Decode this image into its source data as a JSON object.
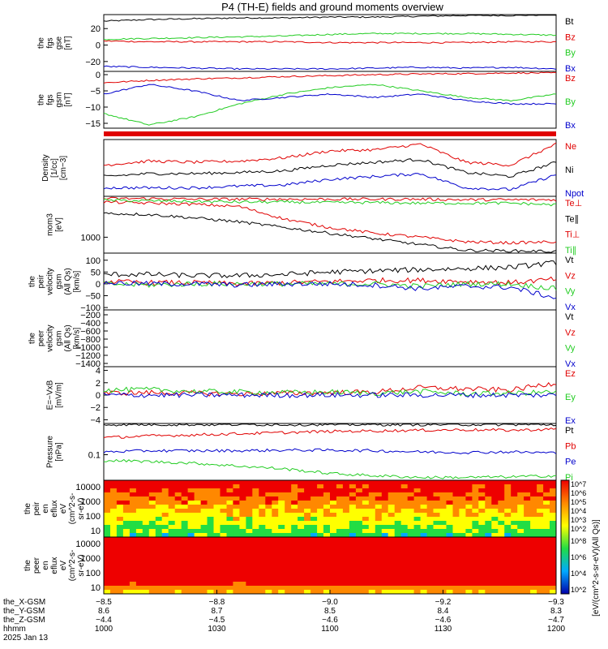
{
  "title": "P4 (TH-E) fields and ground moments overview",
  "colors": {
    "black": "#000000",
    "red": "#e00000",
    "green": "#22cc22",
    "blue": "#0000cc"
  },
  "chart_data": [
    {
      "type": "line",
      "panel": "fgs_gse",
      "ylabel": [
        "the",
        "fgs",
        "gse",
        "[nT]"
      ],
      "yticks": [
        "20",
        "0",
        "−20"
      ],
      "yvalues": [
        20,
        0,
        -20
      ],
      "ylim": [
        -32,
        37
      ],
      "legend": [
        "Bt",
        "Bz",
        "By",
        "Bx"
      ],
      "series": [
        {
          "name": "Bt",
          "values": [
            29,
            31,
            32,
            33,
            33,
            34,
            34,
            35,
            36,
            36,
            37
          ]
        },
        {
          "name": "Bz",
          "values": [
            5,
            4,
            4,
            4,
            4,
            3,
            3,
            3,
            3,
            4,
            4
          ]
        },
        {
          "name": "By",
          "values": [
            7,
            8,
            9,
            10,
            11,
            13,
            14,
            14,
            14,
            13,
            12
          ]
        },
        {
          "name": "Bx",
          "values": [
            -26,
            -27,
            -28,
            -29,
            -29,
            -29,
            -28,
            -27,
            -28,
            -27,
            -29
          ]
        }
      ]
    },
    {
      "type": "line",
      "panel": "fgs_gsm",
      "ylabel": [
        "the",
        "fgs",
        "gsm",
        "[nT]"
      ],
      "yticks": [
        "0",
        "−5",
        "−10",
        "−15"
      ],
      "yvalues": [
        0,
        -5,
        -10,
        -15
      ],
      "ylim": [
        -16.5,
        1
      ],
      "legend": [
        "Bz",
        "By",
        "Bx"
      ],
      "series": [
        {
          "name": "Bz",
          "values": [
            -2.5,
            -1.8,
            -1.3,
            -1,
            -0.6,
            -0.3,
            0,
            0.2,
            0.3,
            0.5,
            0.5
          ]
        },
        {
          "name": "By",
          "values": [
            -12,
            -15.5,
            -13,
            -9,
            -6,
            -4,
            -3,
            -5,
            -7,
            -8,
            -6
          ]
        },
        {
          "name": "Bx",
          "values": [
            -6,
            -3,
            -5,
            -8,
            -7,
            -6,
            -7,
            -6,
            -8,
            -9,
            -9
          ]
        }
      ]
    },
    {
      "type": "line",
      "panel": "density",
      "ylabel": [
        "Density",
        "[1/cc]",
        "[cm−3]"
      ],
      "legend": [
        "Ne",
        "Ni",
        "Npot"
      ],
      "series": [
        {
          "name": "Ne",
          "values": [
            0.55,
            0.62,
            0.6,
            0.62,
            0.68,
            0.8,
            0.82,
            0.92,
            0.6,
            0.55,
            0.92
          ]
        },
        {
          "name": "Ni",
          "values": [
            0.35,
            0.4,
            0.4,
            0.42,
            0.45,
            0.55,
            0.6,
            0.65,
            0.42,
            0.35,
            0.6
          ]
        },
        {
          "name": "Npot",
          "values": [
            0.15,
            0.15,
            0.15,
            0.18,
            0.2,
            0.3,
            0.35,
            0.4,
            0.15,
            0.12,
            0.38
          ]
        }
      ]
    },
    {
      "type": "line",
      "panel": "temperature",
      "ylabel": [
        "mom3",
        "[eV]"
      ],
      "yticks": [
        "1000"
      ],
      "yvalues": [
        1000
      ],
      "legend": [
        "Te⊥",
        "Te∥",
        "Ti⊥",
        "Ti∥"
      ],
      "series": [
        {
          "name": "Te⊥",
          "values": [
            0.96,
            0.96,
            0.95,
            0.95,
            0.95,
            0.95,
            0.95,
            0.95,
            0.94,
            0.94,
            0.94
          ]
        },
        {
          "name": "Te∥",
          "values": [
            0.7,
            0.68,
            0.62,
            0.55,
            0.45,
            0.35,
            0.25,
            0.15,
            0.05,
            0.04,
            0.03
          ]
        },
        {
          "name": "Ti⊥",
          "values": [
            0.9,
            0.88,
            0.86,
            0.82,
            0.6,
            0.45,
            0.35,
            0.28,
            0.2,
            0.18,
            0.2
          ]
        },
        {
          "name": "Ti∥",
          "values": [
            0.93,
            0.92,
            0.91,
            0.9,
            0.9,
            0.89,
            0.89,
            0.88,
            0.88,
            0.88,
            0.85
          ]
        }
      ]
    },
    {
      "type": "line",
      "panel": "peir_velocity",
      "ylabel": [
        "the",
        "peir",
        "velocity",
        "gsm",
        "(All Qs)",
        "[km/s]"
      ],
      "yticks": [
        "100",
        "50",
        "0",
        "−50",
        "−100"
      ],
      "yvalues": [
        100,
        50,
        0,
        -50,
        -100
      ],
      "ylim": [
        -110,
        130
      ],
      "legend": [
        "Vt",
        "Vz",
        "Vy",
        "Vx"
      ],
      "series": [
        {
          "name": "Vt",
          "values": [
            40,
            40,
            35,
            35,
            40,
            50,
            55,
            60,
            65,
            70,
            90
          ]
        },
        {
          "name": "Vz",
          "values": [
            10,
            5,
            5,
            0,
            5,
            10,
            15,
            15,
            10,
            5,
            20
          ]
        },
        {
          "name": "Vy",
          "values": [
            0,
            -5,
            0,
            0,
            0,
            0,
            0,
            -10,
            0,
            0,
            -20
          ]
        },
        {
          "name": "Vx",
          "values": [
            5,
            0,
            0,
            -5,
            0,
            0,
            -5,
            -20,
            -10,
            -15,
            -60
          ]
        }
      ]
    },
    {
      "type": "line",
      "panel": "peer_velocity",
      "ylabel": [
        "the",
        "peer",
        "velocity",
        "gsm",
        "(All Qs)",
        "[km/s]"
      ],
      "yticks": [
        "−200",
        "−400",
        "−600",
        "−800",
        "−1000",
        "−1200",
        "−1400"
      ],
      "yvalues": [
        -200,
        -400,
        -600,
        -800,
        -1000,
        -1200,
        -1400
      ],
      "ylim": [
        -1480,
        -80
      ],
      "legend": [
        "Vt",
        "Vz",
        "Vy",
        "Vx"
      ],
      "series": []
    },
    {
      "type": "line",
      "panel": "e_field",
      "ylabel": [
        "E=−VxB",
        "[mV/m]"
      ],
      "yticks": [
        "4",
        "2",
        "0",
        "−2",
        "−4"
      ],
      "yvalues": [
        4,
        2,
        0,
        -2,
        -4
      ],
      "ylim": [
        -4.6,
        4.6
      ],
      "legend": [
        "Ez",
        "Ey",
        "Ex"
      ],
      "series": [
        {
          "name": "Ez",
          "values": [
            0.3,
            0.4,
            0.3,
            0.2,
            0.3,
            0.4,
            0.5,
            1.2,
            1.0,
            0.8,
            2.0
          ]
        },
        {
          "name": "Ey",
          "values": [
            0.8,
            0.9,
            0.6,
            0.5,
            0.4,
            0.5,
            0.3,
            0.6,
            0.2,
            0.3,
            0.5
          ]
        },
        {
          "name": "Ex",
          "values": [
            0,
            0,
            0,
            0,
            0,
            0,
            0,
            0,
            0,
            0,
            0
          ]
        }
      ]
    },
    {
      "type": "line",
      "panel": "pressure",
      "ylabel": [
        "Pressure",
        "[nPa]"
      ],
      "yticks": [
        "0.1"
      ],
      "yvalues": [
        0.1
      ],
      "legend": [
        "Pt",
        "Pb",
        "Pe",
        "Pi"
      ],
      "series": [
        {
          "name": "Pt",
          "values": [
            0.98,
            0.98,
            0.98,
            0.98,
            0.98,
            0.98,
            0.98,
            0.98,
            0.98,
            0.98,
            0.98
          ]
        },
        {
          "name": "Pb",
          "values": [
            0.75,
            0.78,
            0.8,
            0.82,
            0.84,
            0.86,
            0.87,
            0.88,
            0.89,
            0.88,
            0.9
          ]
        },
        {
          "name": "Pe",
          "values": [
            0.5,
            0.52,
            0.52,
            0.52,
            0.53,
            0.53,
            0.52,
            0.5,
            0.49,
            0.5,
            0.48
          ]
        },
        {
          "name": "Pi",
          "values": [
            0.35,
            0.33,
            0.3,
            0.25,
            0.2,
            0.12,
            0.08,
            0.05,
            0.05,
            0.06,
            0.08
          ]
        }
      ]
    },
    {
      "type": "heatmap",
      "panel": "peir_en_eflux",
      "ylabel": [
        "the",
        "peir",
        "en",
        "eflux",
        "eV",
        "(cm^2-s-",
        "sr-eV)"
      ],
      "yticks": [
        "10000",
        "1000",
        "100",
        "10"
      ]
    },
    {
      "type": "heatmap",
      "panel": "peer_en_eflux",
      "ylabel": [
        "the",
        "peer",
        "en",
        "eflux",
        "eV",
        "(cm^2-s-",
        "sr-eV)"
      ],
      "yticks": [
        "10000",
        "1000",
        "100",
        "10"
      ]
    }
  ],
  "colorbar": {
    "ticks_top": [
      "10^7",
      "10^6",
      "10^5",
      "10^4",
      "10^3",
      "10^2"
    ],
    "ticks_bottom": [
      "10^8",
      "10^6",
      "10^4",
      "10^2"
    ],
    "label": "[eV/(cm^2-s-sr-eV)(All Qs)]"
  },
  "xaxis": {
    "row_labels": [
      "the_X-GSM",
      "the_Y-GSM",
      "the_Z-GSM",
      "hhmm",
      "2025 Jan 13"
    ],
    "columns": [
      [
        "−8.5",
        "8.6",
        "−4.4",
        "1000"
      ],
      [
        "−8.8",
        "8.7",
        "−4.5",
        "1030"
      ],
      [
        "−9.0",
        "8.5",
        "−4.6",
        "1100"
      ],
      [
        "−9.2",
        "8.4",
        "−4.6",
        "1130"
      ],
      [
        "−9.3",
        "8.3",
        "−4.7",
        "1200"
      ]
    ]
  }
}
